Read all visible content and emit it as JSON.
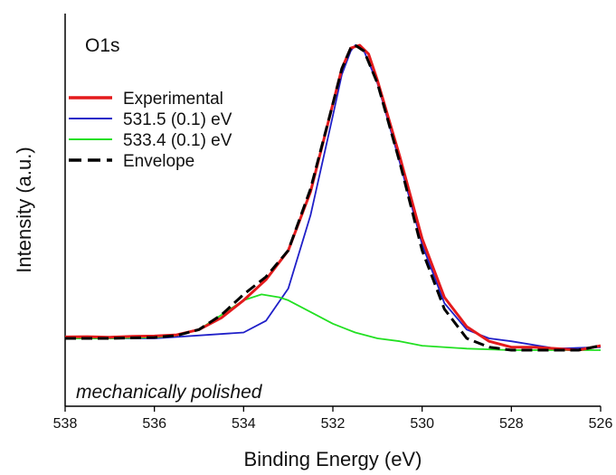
{
  "chart_data": {
    "type": "line",
    "title": "",
    "xlabel": "Binding Energy (eV)",
    "ylabel": "Intensity (a.u.)",
    "xlim": [
      538,
      526
    ],
    "x_reversed": true,
    "ylim": [
      -0.2,
      1.0
    ],
    "x_ticks": [
      "538",
      "536",
      "534",
      "532",
      "530",
      "528",
      "526"
    ],
    "y_ticks_visible": false,
    "grid": false,
    "legend_position": "top-left",
    "annotations": {
      "top_left": "O1s",
      "bottom_left": "mechanically polished"
    },
    "series": [
      {
        "name": "Experimental",
        "color": "#e41a1c",
        "style": "solid",
        "x": [
          538.0,
          537.5,
          537.0,
          536.5,
          536.0,
          535.5,
          535.0,
          534.5,
          534.0,
          533.5,
          533.0,
          532.5,
          532.0,
          531.8,
          531.6,
          531.4,
          531.2,
          531.0,
          530.5,
          530.0,
          529.5,
          529.0,
          528.5,
          528.0,
          527.5,
          527.0,
          526.5,
          526.0
        ],
        "y": [
          0.005,
          0.006,
          0.004,
          0.007,
          0.008,
          0.012,
          0.03,
          0.07,
          0.13,
          0.2,
          0.3,
          0.5,
          0.8,
          0.92,
          0.99,
          1.0,
          0.97,
          0.88,
          0.62,
          0.34,
          0.14,
          0.04,
          -0.01,
          -0.03,
          -0.03,
          -0.035,
          -0.04,
          -0.025
        ]
      },
      {
        "name": "531.5 (0.1) eV",
        "color": "#1f1fc8",
        "style": "solid",
        "x": [
          538.0,
          536.0,
          534.0,
          533.5,
          533.0,
          532.5,
          532.0,
          531.8,
          531.6,
          531.5,
          531.3,
          531.0,
          530.5,
          530.0,
          529.5,
          529.0,
          528.5,
          528.0,
          527.0,
          526.0
        ],
        "y": [
          0.0,
          0.0,
          0.02,
          0.06,
          0.17,
          0.42,
          0.76,
          0.9,
          0.98,
          1.0,
          0.98,
          0.87,
          0.6,
          0.32,
          0.12,
          0.03,
          0.0,
          -0.01,
          -0.035,
          -0.03
        ]
      },
      {
        "name": "533.4 (0.1) eV",
        "color": "#22e022",
        "style": "solid",
        "x": [
          538.0,
          537.0,
          536.0,
          535.5,
          535.0,
          534.5,
          534.0,
          533.6,
          533.2,
          533.0,
          532.5,
          532.0,
          531.5,
          531.0,
          530.5,
          530.0,
          529.0,
          528.0,
          527.0,
          526.0
        ],
        "y": [
          0.0,
          0.0,
          0.003,
          0.01,
          0.03,
          0.08,
          0.13,
          0.15,
          0.14,
          0.13,
          0.09,
          0.05,
          0.02,
          0.0,
          -0.01,
          -0.025,
          -0.035,
          -0.04,
          -0.04,
          -0.04
        ]
      },
      {
        "name": "Envelope",
        "color": "#000000",
        "style": "dashed",
        "x": [
          538.0,
          537.0,
          536.0,
          535.5,
          535.0,
          534.5,
          534.0,
          533.5,
          533.0,
          532.5,
          532.0,
          531.8,
          531.6,
          531.5,
          531.3,
          531.0,
          530.5,
          530.0,
          529.5,
          529.0,
          528.5,
          528.0,
          527.0,
          526.5,
          526.0
        ],
        "y": [
          0.0,
          0.0,
          0.003,
          0.01,
          0.03,
          0.08,
          0.15,
          0.21,
          0.3,
          0.51,
          0.8,
          0.92,
          0.99,
          1.0,
          0.98,
          0.87,
          0.6,
          0.3,
          0.1,
          0.0,
          -0.03,
          -0.04,
          -0.04,
          -0.04,
          -0.025
        ]
      }
    ]
  }
}
